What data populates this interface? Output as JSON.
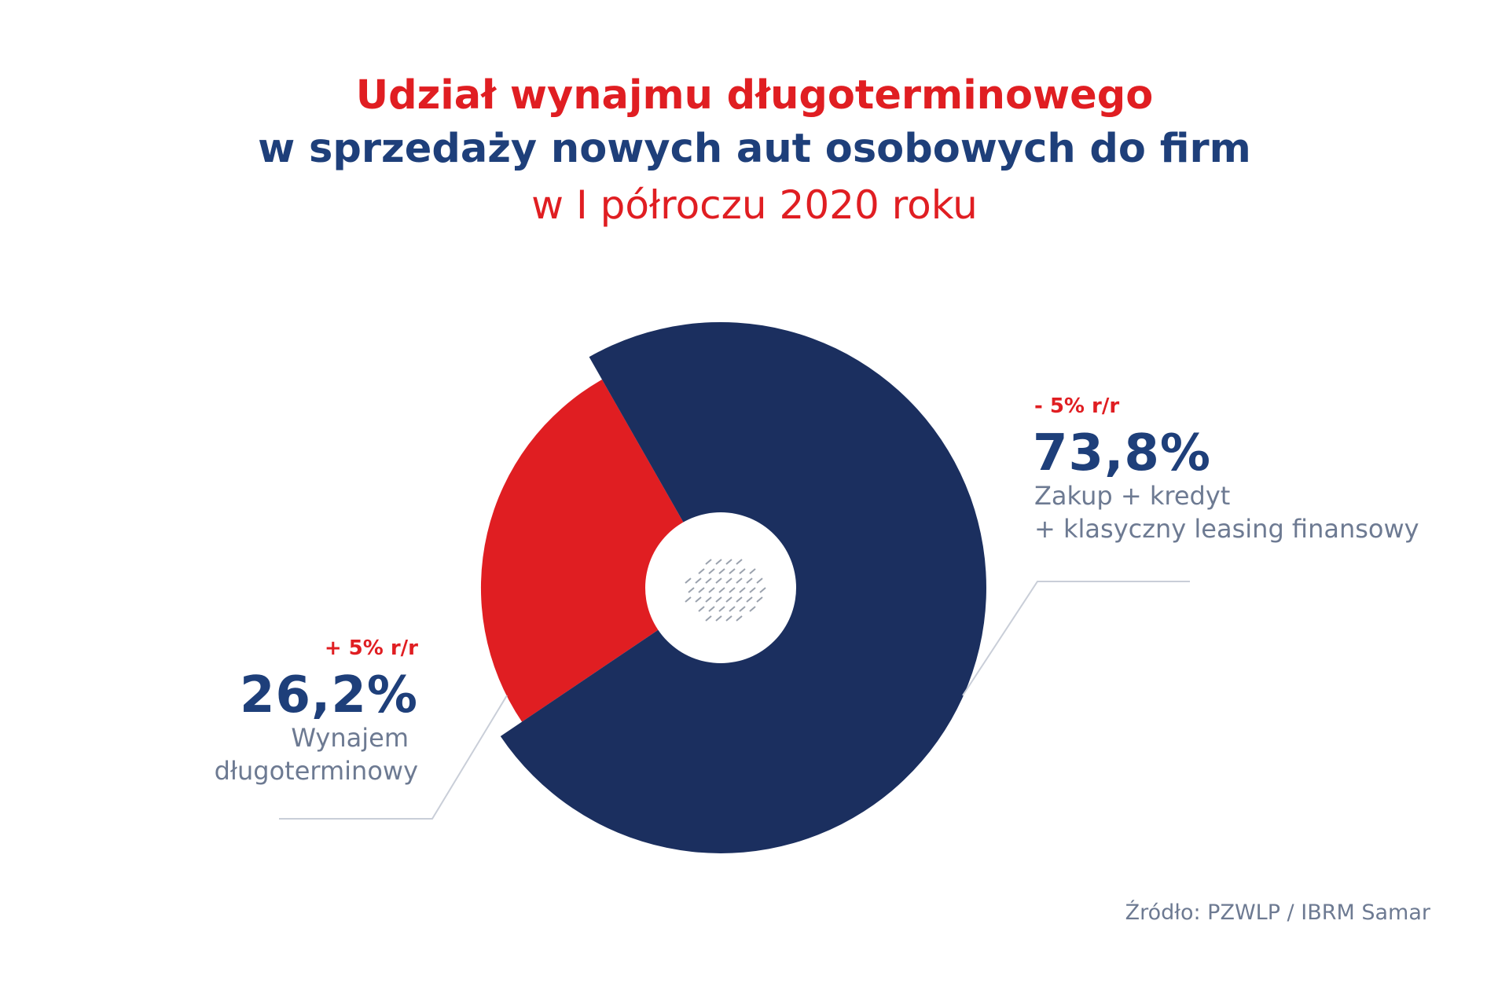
{
  "title": {
    "line1": "Udział wynajmu długoterminowego",
    "line2": "w sprzedaży nowych aut osobowych do firm",
    "line3": "w I półroczu 2020 roku"
  },
  "colors": {
    "red": "#e01e22",
    "navy": "#1b2f5f",
    "text_navy": "#1e3f7a",
    "grey_text": "#6d7a92",
    "leader_line": "#c9ced8"
  },
  "chart_data": {
    "type": "pie",
    "categories": [
      "Wynajem długoterminowy",
      "Zakup + kredyt + klasyczny leasing finansowy"
    ],
    "values": [
      26.2,
      73.8
    ],
    "colors": [
      "#e01e22",
      "#1b2f5f"
    ],
    "labels": [
      {
        "change": "+ 5% r/r",
        "value": "26,2%",
        "desc1": "Wynajem",
        "desc2": "długoterminowy"
      },
      {
        "change": "- 5% r/r",
        "value": "73,8%",
        "desc1": "Zakup + kredyt",
        "desc2": "+ klasyczny leasing finansowy"
      }
    ]
  },
  "source": "Źródło: PZWLP / IBRM Samar"
}
